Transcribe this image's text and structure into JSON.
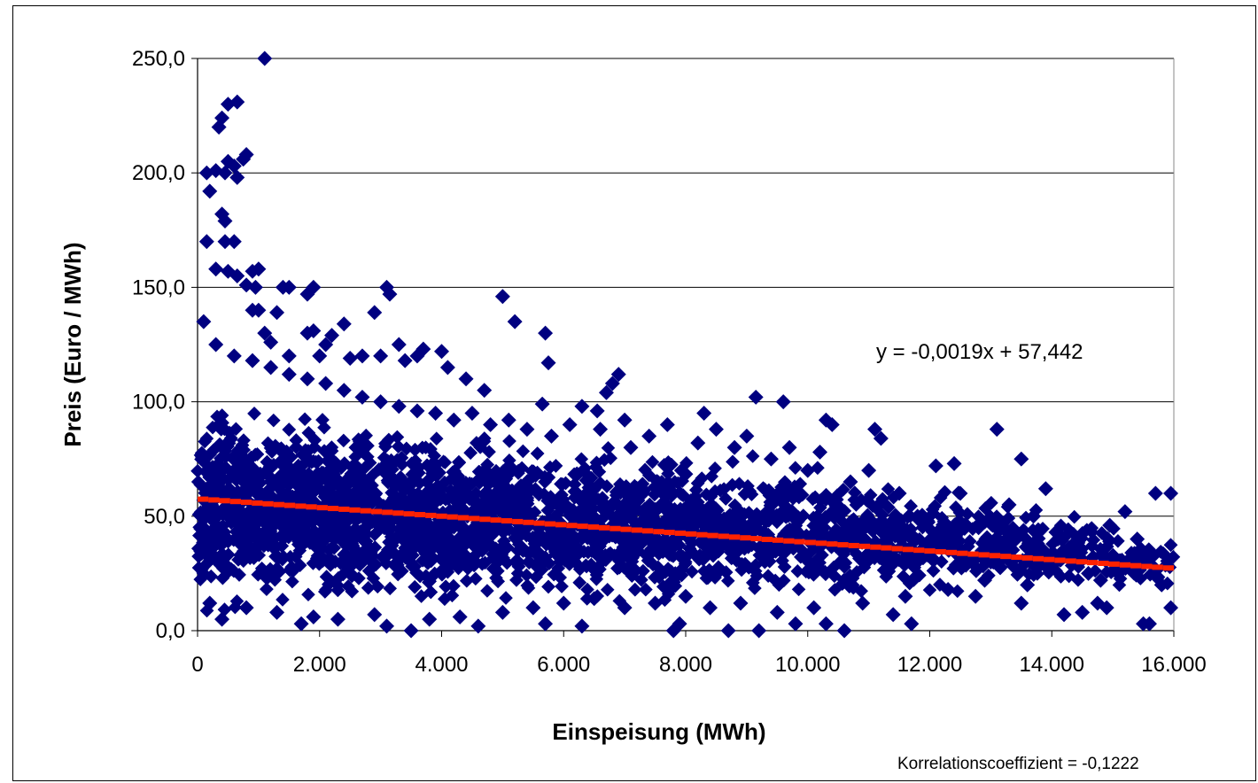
{
  "chart_data": {
    "type": "scatter",
    "title": "",
    "xlabel": "Einspeisung (MWh)",
    "ylabel": "Preis (Euro / MWh)",
    "xlim": [
      0,
      16000
    ],
    "ylim": [
      0,
      250
    ],
    "x_ticks": [
      "0",
      "2.000",
      "4.000",
      "6.000",
      "8.000",
      "10.000",
      "12.000",
      "14.000",
      "16.000"
    ],
    "y_ticks": [
      "0,0",
      "50,0",
      "100,0",
      "150,0",
      "200,0",
      "250,0"
    ],
    "grid": "horizontal",
    "marker_color": "#000080",
    "trendline_color": "#ff2200",
    "trendline": {
      "slope": -0.0019,
      "intercept": 57.442,
      "x_range": [
        0,
        16000
      ]
    },
    "equation_label": "y = -0,0019x + 57,442",
    "correlation_label": "Korrelationscoeffizient = -0,1222",
    "series": [
      {
        "name": "",
        "points": [
          [
            1100,
            250
          ],
          [
            650,
            231
          ],
          [
            500,
            230
          ],
          [
            400,
            224
          ],
          [
            350,
            220
          ],
          [
            300,
            201
          ],
          [
            150,
            200
          ],
          [
            450,
            200
          ],
          [
            500,
            205
          ],
          [
            600,
            203
          ],
          [
            750,
            206
          ],
          [
            800,
            208
          ],
          [
            650,
            198
          ],
          [
            200,
            192
          ],
          [
            400,
            182
          ],
          [
            450,
            179
          ],
          [
            150,
            170
          ],
          [
            450,
            170
          ],
          [
            600,
            170
          ],
          [
            300,
            158
          ],
          [
            500,
            157
          ],
          [
            650,
            155
          ],
          [
            900,
            157
          ],
          [
            1000,
            158
          ],
          [
            800,
            151
          ],
          [
            950,
            150
          ],
          [
            1400,
            150
          ],
          [
            1500,
            150
          ],
          [
            1900,
            150
          ],
          [
            3100,
            150
          ],
          [
            3150,
            147
          ],
          [
            1800,
            147
          ],
          [
            5000,
            146
          ],
          [
            5200,
            135
          ],
          [
            5700,
            130
          ],
          [
            5750,
            117
          ],
          [
            1300,
            139
          ],
          [
            2900,
            139
          ],
          [
            2400,
            134
          ],
          [
            900,
            140
          ],
          [
            1000,
            140
          ],
          [
            1100,
            130
          ],
          [
            1200,
            126
          ],
          [
            1800,
            130
          ],
          [
            1900,
            131
          ],
          [
            2200,
            129
          ],
          [
            2100,
            125
          ],
          [
            3000,
            120
          ],
          [
            3300,
            125
          ],
          [
            3600,
            120
          ],
          [
            3700,
            123
          ],
          [
            4000,
            122
          ],
          [
            3400,
            118
          ],
          [
            2500,
            119
          ],
          [
            2700,
            120
          ],
          [
            2000,
            120
          ],
          [
            1500,
            120
          ],
          [
            4100,
            115
          ],
          [
            4400,
            110
          ],
          [
            4700,
            105
          ],
          [
            6900,
            112
          ],
          [
            6800,
            108
          ],
          [
            6700,
            104
          ],
          [
            9150,
            102
          ],
          [
            9600,
            100
          ],
          [
            5650,
            99
          ],
          [
            6300,
            98
          ],
          [
            6550,
            96
          ],
          [
            8300,
            95
          ],
          [
            7000,
            92
          ],
          [
            10300,
            92
          ],
          [
            10400,
            90
          ],
          [
            11100,
            88
          ],
          [
            13100,
            88
          ],
          [
            11200,
            84
          ],
          [
            12100,
            72
          ],
          [
            12400,
            73
          ],
          [
            13500,
            75
          ],
          [
            13900,
            62
          ],
          [
            15700,
            60
          ],
          [
            15950,
            60
          ],
          [
            15200,
            52
          ],
          [
            14950,
            46
          ],
          [
            15400,
            40
          ],
          [
            15600,
            35
          ],
          [
            15300,
            32
          ],
          [
            15800,
            20
          ],
          [
            15950,
            10
          ],
          [
            15500,
            3
          ],
          [
            15600,
            3
          ],
          [
            14900,
            10
          ],
          [
            14750,
            12
          ],
          [
            14500,
            8
          ],
          [
            14200,
            7
          ],
          [
            13500,
            12
          ],
          [
            12750,
            15
          ],
          [
            11700,
            3
          ],
          [
            11400,
            7
          ],
          [
            10600,
            0
          ],
          [
            10300,
            3
          ],
          [
            9800,
            3
          ],
          [
            9200,
            0
          ],
          [
            8700,
            0
          ],
          [
            7800,
            0
          ],
          [
            7900,
            3
          ],
          [
            6300,
            2
          ],
          [
            5700,
            3
          ],
          [
            4600,
            2
          ],
          [
            3500,
            0
          ],
          [
            3100,
            2
          ],
          [
            1700,
            3
          ],
          [
            400,
            5
          ],
          [
            12500,
            60
          ],
          [
            12800,
            45
          ],
          [
            13300,
            55
          ],
          [
            13700,
            50
          ],
          [
            14100,
            40
          ],
          [
            14400,
            30
          ],
          [
            14600,
            25
          ],
          [
            14800,
            22
          ],
          [
            15100,
            30
          ],
          [
            13000,
            30
          ],
          [
            12200,
            40
          ],
          [
            11800,
            50
          ],
          [
            11500,
            60
          ],
          [
            11000,
            70
          ],
          [
            10700,
            65
          ],
          [
            10200,
            78
          ],
          [
            10000,
            70
          ],
          [
            9700,
            80
          ],
          [
            9400,
            75
          ],
          [
            9000,
            85
          ],
          [
            8800,
            80
          ],
          [
            8500,
            88
          ],
          [
            8200,
            82
          ],
          [
            7700,
            90
          ],
          [
            7400,
            85
          ],
          [
            7100,
            80
          ],
          [
            6600,
            88
          ],
          [
            6100,
            90
          ],
          [
            5800,
            85
          ],
          [
            5400,
            88
          ],
          [
            5100,
            92
          ],
          [
            4800,
            90
          ],
          [
            4500,
            95
          ],
          [
            4200,
            92
          ],
          [
            3900,
            95
          ],
          [
            3600,
            96
          ],
          [
            3300,
            98
          ],
          [
            3000,
            100
          ],
          [
            2700,
            102
          ],
          [
            2400,
            105
          ],
          [
            2100,
            108
          ],
          [
            1800,
            110
          ],
          [
            1500,
            112
          ],
          [
            1200,
            115
          ],
          [
            900,
            118
          ],
          [
            600,
            120
          ],
          [
            300,
            125
          ],
          [
            100,
            135
          ],
          [
            13600,
            20
          ],
          [
            12900,
            22
          ],
          [
            12300,
            18
          ],
          [
            11600,
            15
          ],
          [
            10900,
            12
          ],
          [
            10100,
            10
          ],
          [
            9500,
            8
          ],
          [
            8900,
            12
          ],
          [
            8400,
            10
          ],
          [
            8000,
            15
          ],
          [
            7500,
            12
          ],
          [
            7000,
            10
          ],
          [
            6500,
            14
          ],
          [
            6000,
            12
          ],
          [
            5500,
            10
          ],
          [
            5000,
            8
          ],
          [
            4300,
            6
          ],
          [
            3800,
            5
          ],
          [
            2900,
            7
          ],
          [
            2300,
            5
          ],
          [
            1900,
            6
          ],
          [
            1300,
            8
          ],
          [
            800,
            10
          ],
          [
            200,
            12
          ]
        ]
      }
    ]
  }
}
